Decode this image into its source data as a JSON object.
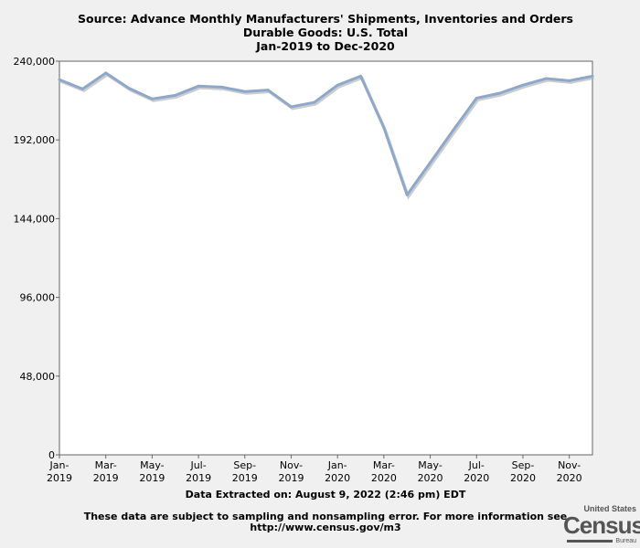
{
  "chart_data": {
    "type": "line",
    "title": [
      "Source: Advance Monthly Manufacturers' Shipments, Inventories and Orders",
      "Durable Goods: U.S. Total",
      "Jan-2019 to Dec-2020"
    ],
    "xlabel": "Data Extracted on: August 9, 2022 (2:46 pm) EDT",
    "ylabel": "",
    "ylim": [
      0,
      240000
    ],
    "yticks": [
      0,
      48000,
      96000,
      144000,
      192000,
      240000
    ],
    "ytick_labels": [
      "0",
      "48,000",
      "96,000",
      "144,000",
      "192,000",
      "240,000"
    ],
    "xtick_labels": [
      [
        "Jan-",
        "2019"
      ],
      [
        "Mar-",
        "2019"
      ],
      [
        "May-",
        "2019"
      ],
      [
        "Jul-",
        "2019"
      ],
      [
        "Sep-",
        "2019"
      ],
      [
        "Nov-",
        "2019"
      ],
      [
        "Jan-",
        "2020"
      ],
      [
        "Mar-",
        "2020"
      ],
      [
        "May-",
        "2020"
      ],
      [
        "Jul-",
        "2020"
      ],
      [
        "Sep-",
        "2020"
      ],
      [
        "Nov-",
        "2020"
      ]
    ],
    "x": [
      "Jan-2019",
      "Feb-2019",
      "Mar-2019",
      "Apr-2019",
      "May-2019",
      "Jun-2019",
      "Jul-2019",
      "Aug-2019",
      "Sep-2019",
      "Oct-2019",
      "Nov-2019",
      "Dec-2019",
      "Jan-2020",
      "Feb-2020",
      "Mar-2020",
      "Apr-2020",
      "May-2020",
      "Jun-2020",
      "Jul-2020",
      "Aug-2020",
      "Sep-2020",
      "Oct-2020",
      "Nov-2020",
      "Dec-2020"
    ],
    "series": [
      {
        "name": "Durable Goods: U.S. Total",
        "color": "#8ea8cc",
        "values": [
          228700,
          223100,
          232800,
          223500,
          217000,
          219200,
          224800,
          224200,
          221500,
          222400,
          212200,
          214900,
          225400,
          230900,
          199400,
          158500,
          178200,
          198100,
          217500,
          220500,
          225400,
          229400,
          228100,
          230900
        ]
      }
    ],
    "grid": false
  },
  "footer": {
    "disclaimer": "These data are subject to sampling and nonsampling error. For more information see",
    "url": "http://www.census.gov/m3"
  },
  "logo": {
    "top": "United States",
    "main": "Census",
    "bottom": "Bureau"
  }
}
